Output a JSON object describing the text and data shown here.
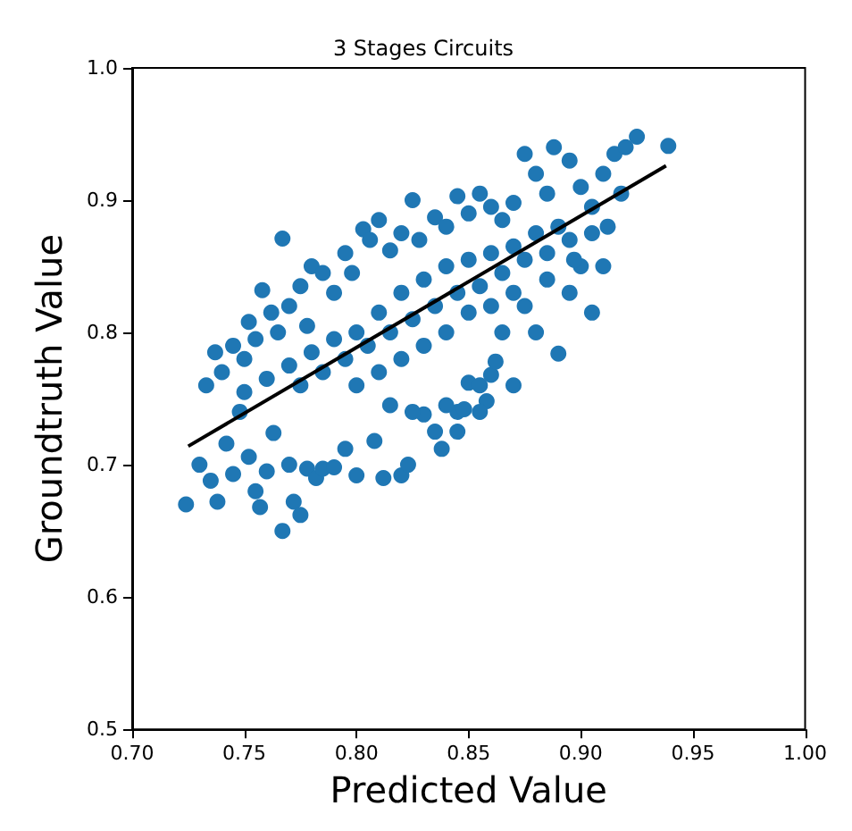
{
  "chart_data": {
    "type": "scatter",
    "title": "3 Stages Circuits",
    "xlabel": "Predicted Value",
    "ylabel": "Groundtruth Value",
    "xlim": [
      0.7,
      1.0
    ],
    "ylim": [
      0.5,
      1.0
    ],
    "xticks": [
      {
        "value": 0.7,
        "label": "0.70"
      },
      {
        "value": 0.75,
        "label": "0.75"
      },
      {
        "value": 0.8,
        "label": "0.80"
      },
      {
        "value": 0.85,
        "label": "0.85"
      },
      {
        "value": 0.9,
        "label": "0.90"
      },
      {
        "value": 0.95,
        "label": "0.95"
      },
      {
        "value": 1.0,
        "label": "1.00"
      }
    ],
    "yticks": [
      0.5,
      0.6,
      0.7,
      0.8,
      0.9,
      {
        "value": 1.0,
        "label": "1.0"
      }
    ],
    "grid": false,
    "series": [
      {
        "marker": "circle",
        "color": "#1f77b4",
        "x": [
          0.73,
          0.735,
          0.738,
          0.742,
          0.745,
          0.748,
          0.752,
          0.755,
          0.757,
          0.76,
          0.763,
          0.77,
          0.772,
          0.775,
          0.778,
          0.782,
          0.785,
          0.79,
          0.795,
          0.8,
          0.808,
          0.812,
          0.815,
          0.82,
          0.823,
          0.83,
          0.835,
          0.838,
          0.845,
          0.848,
          0.85,
          0.855,
          0.858,
          0.86,
          0.733,
          0.737,
          0.74,
          0.745,
          0.75,
          0.752,
          0.755,
          0.758,
          0.762,
          0.765,
          0.77,
          0.775,
          0.778,
          0.78,
          0.785,
          0.79,
          0.795,
          0.798,
          0.803,
          0.806,
          0.81,
          0.815,
          0.82,
          0.825,
          0.828,
          0.835,
          0.84,
          0.845,
          0.85,
          0.855,
          0.86,
          0.865,
          0.87,
          0.875,
          0.88,
          0.885,
          0.888,
          0.895,
          0.9,
          0.905,
          0.91,
          0.915,
          0.92,
          0.925,
          0.939,
          0.918,
          0.912,
          0.75,
          0.76,
          0.77,
          0.775,
          0.78,
          0.785,
          0.79,
          0.795,
          0.8,
          0.805,
          0.81,
          0.815,
          0.82,
          0.825,
          0.83,
          0.835,
          0.84,
          0.845,
          0.85,
          0.855,
          0.86,
          0.865,
          0.87,
          0.875,
          0.88,
          0.885,
          0.89,
          0.895,
          0.8,
          0.81,
          0.82,
          0.83,
          0.84,
          0.85,
          0.86,
          0.87,
          0.865,
          0.875,
          0.88,
          0.885,
          0.89,
          0.895,
          0.9,
          0.905,
          0.91,
          0.897,
          0.87,
          0.862,
          0.845,
          0.855,
          0.84,
          0.825,
          0.905,
          0.724,
          0.767,
          0.767
        ],
        "values": [
          0.7,
          0.688,
          0.672,
          0.716,
          0.693,
          0.74,
          0.706,
          0.68,
          0.668,
          0.695,
          0.724,
          0.7,
          0.672,
          0.662,
          0.697,
          0.69,
          0.697,
          0.698,
          0.712,
          0.692,
          0.718,
          0.69,
          0.745,
          0.692,
          0.7,
          0.738,
          0.725,
          0.712,
          0.74,
          0.742,
          0.762,
          0.76,
          0.748,
          0.768,
          0.76,
          0.785,
          0.77,
          0.79,
          0.78,
          0.808,
          0.795,
          0.832,
          0.815,
          0.8,
          0.82,
          0.835,
          0.805,
          0.85,
          0.845,
          0.83,
          0.86,
          0.845,
          0.878,
          0.87,
          0.885,
          0.862,
          0.875,
          0.9,
          0.87,
          0.887,
          0.88,
          0.903,
          0.89,
          0.905,
          0.895,
          0.885,
          0.898,
          0.935,
          0.92,
          0.905,
          0.94,
          0.93,
          0.91,
          0.895,
          0.92,
          0.935,
          0.94,
          0.948,
          0.941,
          0.905,
          0.88,
          0.755,
          0.765,
          0.775,
          0.76,
          0.785,
          0.77,
          0.795,
          0.78,
          0.8,
          0.79,
          0.815,
          0.8,
          0.83,
          0.81,
          0.84,
          0.82,
          0.85,
          0.83,
          0.855,
          0.835,
          0.86,
          0.845,
          0.865,
          0.855,
          0.875,
          0.86,
          0.88,
          0.87,
          0.76,
          0.77,
          0.78,
          0.79,
          0.8,
          0.815,
          0.82,
          0.83,
          0.8,
          0.82,
          0.8,
          0.84,
          0.784,
          0.83,
          0.85,
          0.815,
          0.85,
          0.855,
          0.76,
          0.778,
          0.725,
          0.74,
          0.745,
          0.74,
          0.875,
          0.67,
          0.871,
          0.65
        ]
      },
      {
        "type": "line",
        "color": "#000000",
        "x": [
          0.725,
          0.938
        ],
        "values": [
          0.714,
          0.926
        ]
      }
    ]
  }
}
